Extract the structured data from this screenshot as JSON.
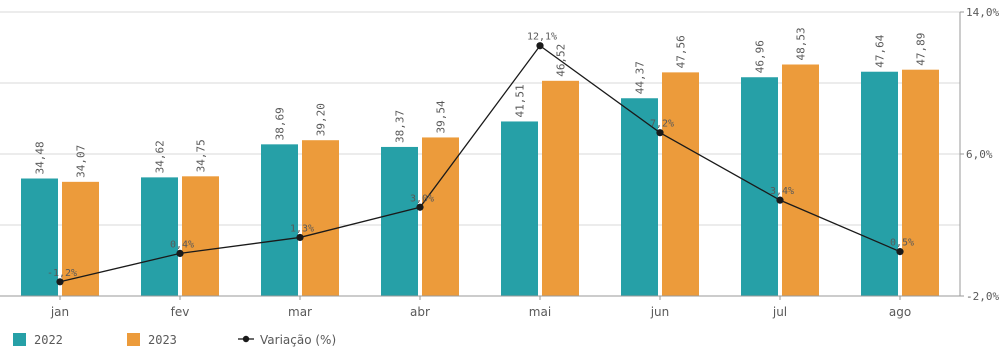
{
  "chart_data": {
    "type": "bar",
    "categories": [
      "jan",
      "fev",
      "mar",
      "abr",
      "mai",
      "jun",
      "jul",
      "ago"
    ],
    "series": [
      {
        "name": "2022",
        "values": [
          34.48,
          34.62,
          38.69,
          38.37,
          41.51,
          44.37,
          46.96,
          47.64
        ],
        "color": "#26a0a7"
      },
      {
        "name": "2023",
        "values": [
          34.07,
          34.75,
          39.2,
          39.54,
          46.52,
          47.56,
          48.53,
          47.89
        ],
        "color": "#ec9b3b"
      }
    ],
    "bar_labels": [
      [
        "34,48",
        "34,62",
        "38,69",
        "38,37",
        "41,51",
        "44,37",
        "46,96",
        "47,64"
      ],
      [
        "34,07",
        "34,75",
        "39,20",
        "39,54",
        "46,52",
        "47,56",
        "48,53",
        "47,89"
      ]
    ],
    "line": {
      "name": "Variação (%)",
      "values": [
        -1.2,
        0.4,
        1.3,
        3.0,
        12.1,
        7.2,
        3.4,
        0.5
      ],
      "labels": [
        "-1,2%",
        "0,4%",
        "1,3%",
        "3,0%",
        "12,1%",
        "7,2%",
        "3,4%",
        "0,5%"
      ],
      "color": "#1a1a1a"
    },
    "left_axis": {
      "ylim": [
        20,
        55
      ],
      "labels_shown": false
    },
    "right_axis": {
      "ylim": [
        -2.0,
        14.0
      ],
      "ticks": [
        14.0,
        6.0,
        -2.0
      ],
      "tick_labels": [
        "14,0%",
        "6,0%",
        "-2,0%"
      ]
    },
    "grid": true,
    "legend": {
      "placement": "bottom-left",
      "entries": [
        "2022",
        "2023",
        "Variação (%)"
      ]
    }
  }
}
